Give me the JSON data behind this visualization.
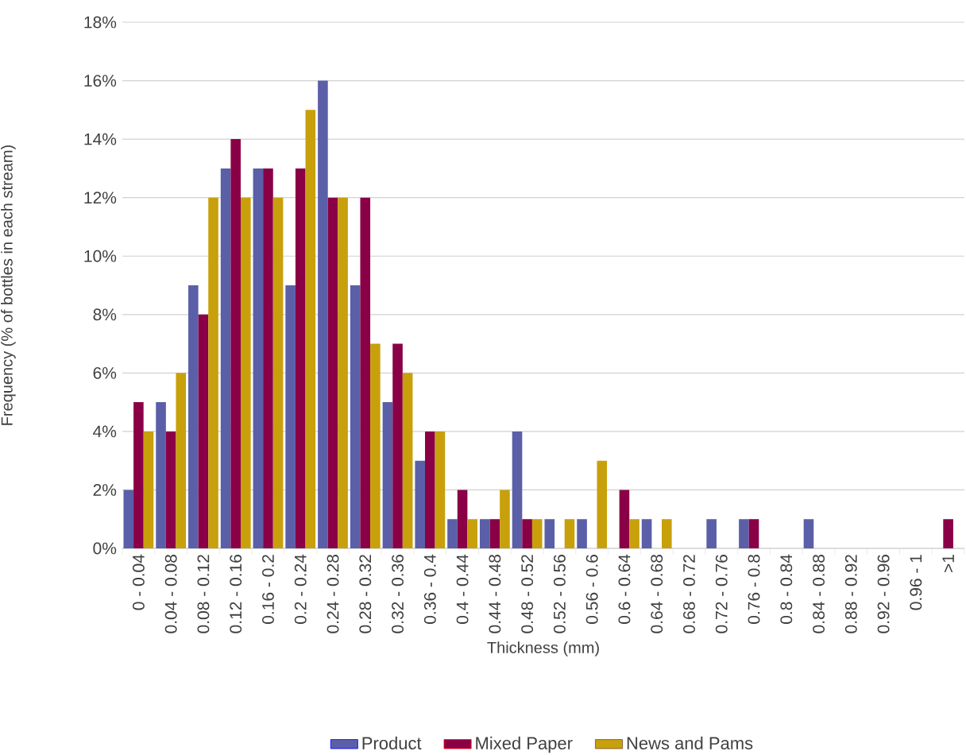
{
  "chart_data": {
    "type": "bar",
    "xlabel": "Thickness (mm)",
    "ylabel": "Frequency (% of bottles in each stream)",
    "categories": [
      "0 - 0.04",
      "0.04 - 0.08",
      "0.08 - 0.12",
      "0.12 - 0.16",
      "0.16 - 0.2",
      "0.2 - 0.24",
      "0.24 - 0.28",
      "0.28 - 0.32",
      "0.32 - 0.36",
      "0.36 - 0.4",
      "0.4 - 0.44",
      "0.44 - 0.48",
      "0.48 - 0.52",
      "0.52 - 0.56",
      "0.56 - 0.6",
      "0.6 - 0.64",
      "0.64 - 0.68",
      "0.68 - 0.72",
      "0.72 - 0.76",
      "0.76 - 0.8",
      "0.8 - 0.84",
      "0.84 - 0.88",
      "0.88 - 0.92",
      "0.92 - 0.96",
      "0.96 - 1",
      ">1"
    ],
    "series": [
      {
        "name": "Product",
        "color": "#5a5fa8",
        "values": [
          2,
          5,
          9,
          13,
          13,
          9,
          16,
          9,
          5,
          3,
          1,
          1,
          4,
          1,
          1,
          0,
          1,
          0,
          1,
          1,
          0,
          1,
          0,
          0,
          0,
          0
        ]
      },
      {
        "name": "Mixed Paper",
        "color": "#8a0046",
        "values": [
          5,
          4,
          8,
          14,
          13,
          13,
          12,
          12,
          7,
          4,
          2,
          1,
          1,
          0,
          0,
          2,
          0,
          0,
          0,
          1,
          0,
          0,
          0,
          0,
          0,
          1
        ]
      },
      {
        "name": "News and Pams",
        "color": "#c8a00c",
        "values": [
          4,
          6,
          12,
          12,
          12,
          15,
          12,
          7,
          6,
          4,
          1,
          2,
          1,
          1,
          3,
          1,
          1,
          0,
          0,
          0,
          0,
          0,
          0,
          0,
          0,
          0
        ]
      }
    ],
    "ylim": [
      0,
      18
    ],
    "yticks": [
      {
        "value": 0,
        "label": "0%"
      },
      {
        "value": 2,
        "label": "2%"
      },
      {
        "value": 4,
        "label": "4%"
      },
      {
        "value": 6,
        "label": "6%"
      },
      {
        "value": 8,
        "label": "8%"
      },
      {
        "value": 10,
        "label": "10%"
      },
      {
        "value": 12,
        "label": "12%"
      },
      {
        "value": 14,
        "label": "14%"
      },
      {
        "value": 16,
        "label": "16%"
      },
      {
        "value": 18,
        "label": "18%"
      }
    ],
    "grid": "y",
    "legend": "bottom"
  }
}
